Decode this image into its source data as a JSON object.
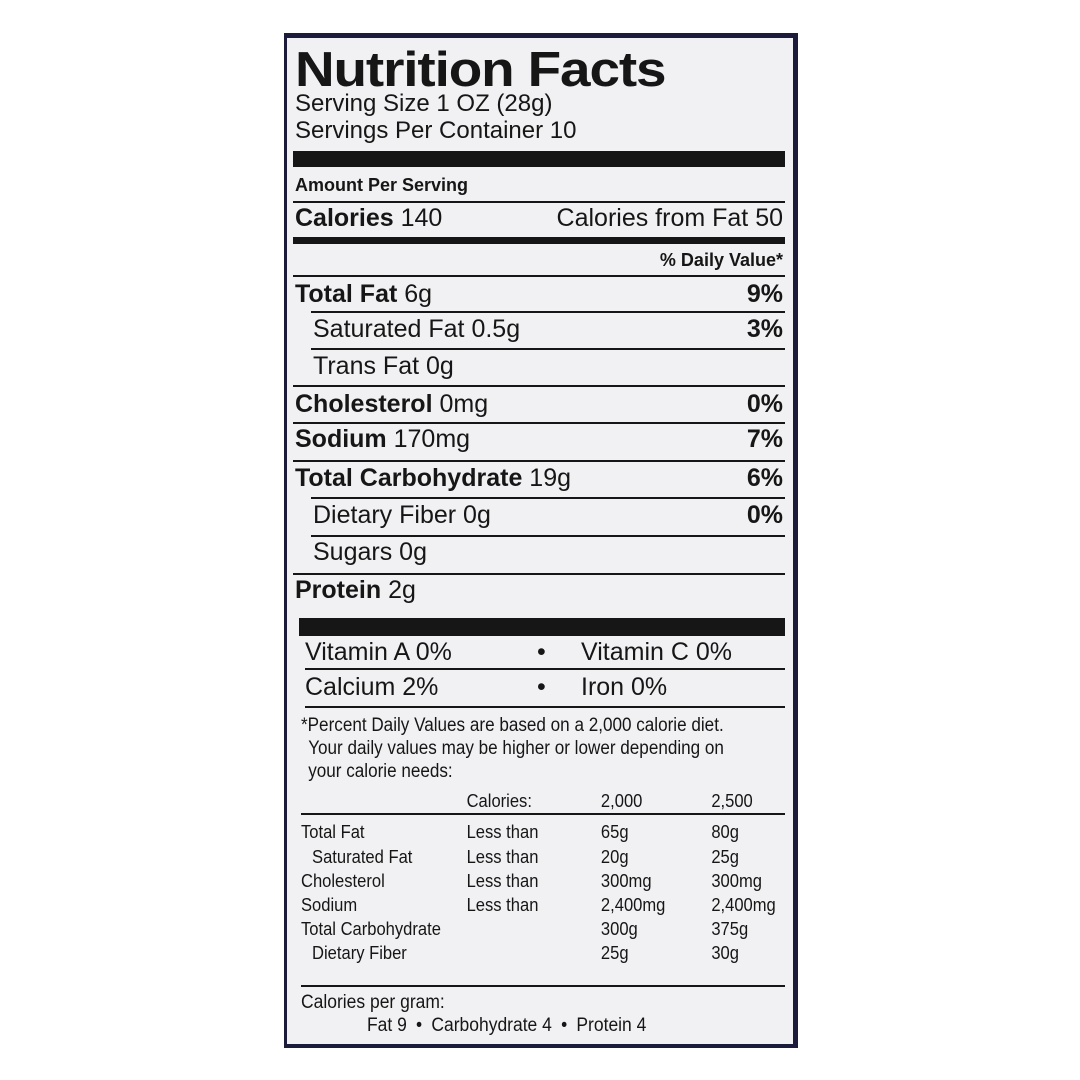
{
  "title": "Nutrition Facts",
  "serving_size": "Serving Size 1 OZ (28g)",
  "servings_per_container": "Servings Per Container 10",
  "amount_per_serving": "Amount Per Serving",
  "calories": {
    "label": "Calories",
    "value": "140",
    "from_fat": "Calories from Fat 50"
  },
  "daily_value_header": "% Daily Value*",
  "nutrients": [
    {
      "label": "Total Fat",
      "amount": "6g",
      "dv": "9%"
    },
    {
      "label": "Saturated Fat",
      "amount": "0.5g",
      "dv": "3%"
    },
    {
      "label": "Trans Fat",
      "amount": "0g",
      "dv": ""
    },
    {
      "label": "Cholesterol",
      "amount": "0mg",
      "dv": "0%"
    },
    {
      "label": "Sodium",
      "amount": "170mg",
      "dv": "7%"
    },
    {
      "label": "Total Carbohydrate",
      "amount": "19g",
      "dv": "6%"
    },
    {
      "label": "Dietary Fiber",
      "amount": "0g",
      "dv": "0%"
    },
    {
      "label": "Sugars",
      "amount": "0g",
      "dv": ""
    },
    {
      "label": "Protein",
      "amount": "2g",
      "dv": ""
    }
  ],
  "vitamins": [
    [
      "Vitamin A 0%",
      "Vitamin C 0%"
    ],
    [
      "Calcium 2%",
      "Iron 0%"
    ]
  ],
  "bullet": "•",
  "footnote": [
    "*Percent Daily Values are based on a 2,000 calorie diet.",
    "Your daily values may be higher or lower depending on",
    "your calorie needs:"
  ],
  "dv_table": {
    "header": [
      "Calories:",
      "2,000",
      "2,500"
    ],
    "rows": [
      [
        "Total Fat",
        "Less than",
        "65g",
        "80g"
      ],
      [
        "Saturated Fat",
        "Less than",
        "20g",
        "25g"
      ],
      [
        "Cholesterol",
        "Less than",
        "300mg",
        "300mg"
      ],
      [
        "Sodium",
        "Less than",
        "2,400mg",
        "2,400mg"
      ],
      [
        "Total Carbohydrate",
        "",
        "300g",
        "375g"
      ],
      [
        "Dietary Fiber",
        "",
        "25g",
        "30g"
      ]
    ]
  },
  "calories_per_gram": {
    "label": "Calories per gram:",
    "fat": "Fat 9",
    "carbohydrate": "Carbohydrate 4",
    "protein": "Protein 4"
  }
}
